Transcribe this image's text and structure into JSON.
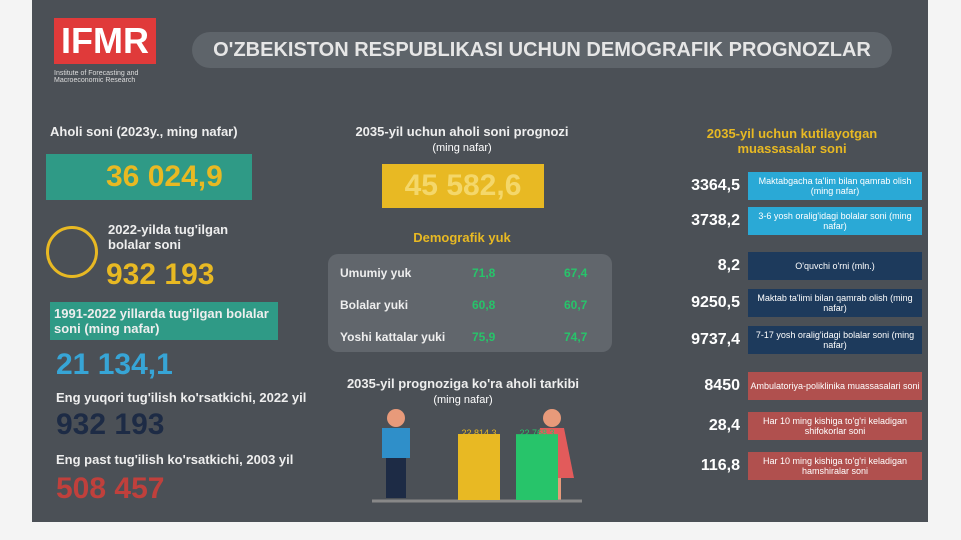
{
  "header": {
    "logo": "IFMR",
    "logo_subtitle": "Institute of Forecasting and Macroeconomic Research",
    "title": "O'ZBEKISTON RESPUBLIKASI UCHUN DEMOGRAFIK PROGNOZLAR"
  },
  "left": {
    "population_label": "Aholi soni (2023y., ming nafar)",
    "population": "36 024,9",
    "births_label": "2022-yilda tug'ilgan bolalar soni",
    "births": "932 193",
    "births_total_label": "1991-2022 yillarda tug'ilgan bolalar soni (ming nafar)",
    "births_total": "21 134,1",
    "max_label": "Eng yuqori tug'ilish ko'rsatkichi, 2022 yil",
    "max": "932 193",
    "min_label": "Eng past tug'ilish ko'rsatkichi, 2003 yil",
    "min": "508 457"
  },
  "middle": {
    "forecast_label": "2035-yil uchun aholi soni prognozi",
    "forecast_unit": "(ming nafar)",
    "forecast": "45 582,6",
    "burden_title": "Demografik yuk",
    "burden_rows": [
      [
        "Umumiy yuk",
        "71,8",
        "67,4"
      ],
      [
        "Bolalar yuki",
        "60,8",
        "60,7"
      ],
      [
        "Yoshi kattalar yuki",
        "75,9",
        "74,7"
      ]
    ],
    "composition_title": "2035-yil prognoziga ko'ra aholi tarkibi",
    "composition_unit": "(ming nafar)",
    "composition": [
      {
        "value": 22814.3,
        "value_label": "22 814,3",
        "color": "#e8b923"
      },
      {
        "value": 22768.3,
        "value_label": "22 768,3",
        "color": "#27c46a"
      }
    ]
  },
  "right": {
    "title": "2035-yil uchun kutilayotgan muassasalar soni",
    "items": [
      [
        "3364,5",
        "Maktabgacha ta'lim bilan qamrab olish (ming nafar)"
      ],
      [
        "3738,2",
        "3-6 yosh oralig'idagi bolalar soni (ming nafar)"
      ],
      [
        "8,2",
        "O'quvchi o'rni (mln.)"
      ],
      [
        "9250,5",
        "Maktab ta'limi bilan qamrab olish (ming nafar)"
      ],
      [
        "9737,4",
        "7-17 yosh oralig'idagi bolalar soni (ming nafar)"
      ],
      [
        "8450",
        "Ambulatoriya-poliklinika muassasalari soni"
      ],
      [
        "28,4",
        "Har 10 ming kishiga to'g'ri keladigan shifokorlar soni"
      ],
      [
        "116,8",
        "Har 10 ming kishiga to'g'ri keladigan hamshiralar soni"
      ]
    ]
  }
}
